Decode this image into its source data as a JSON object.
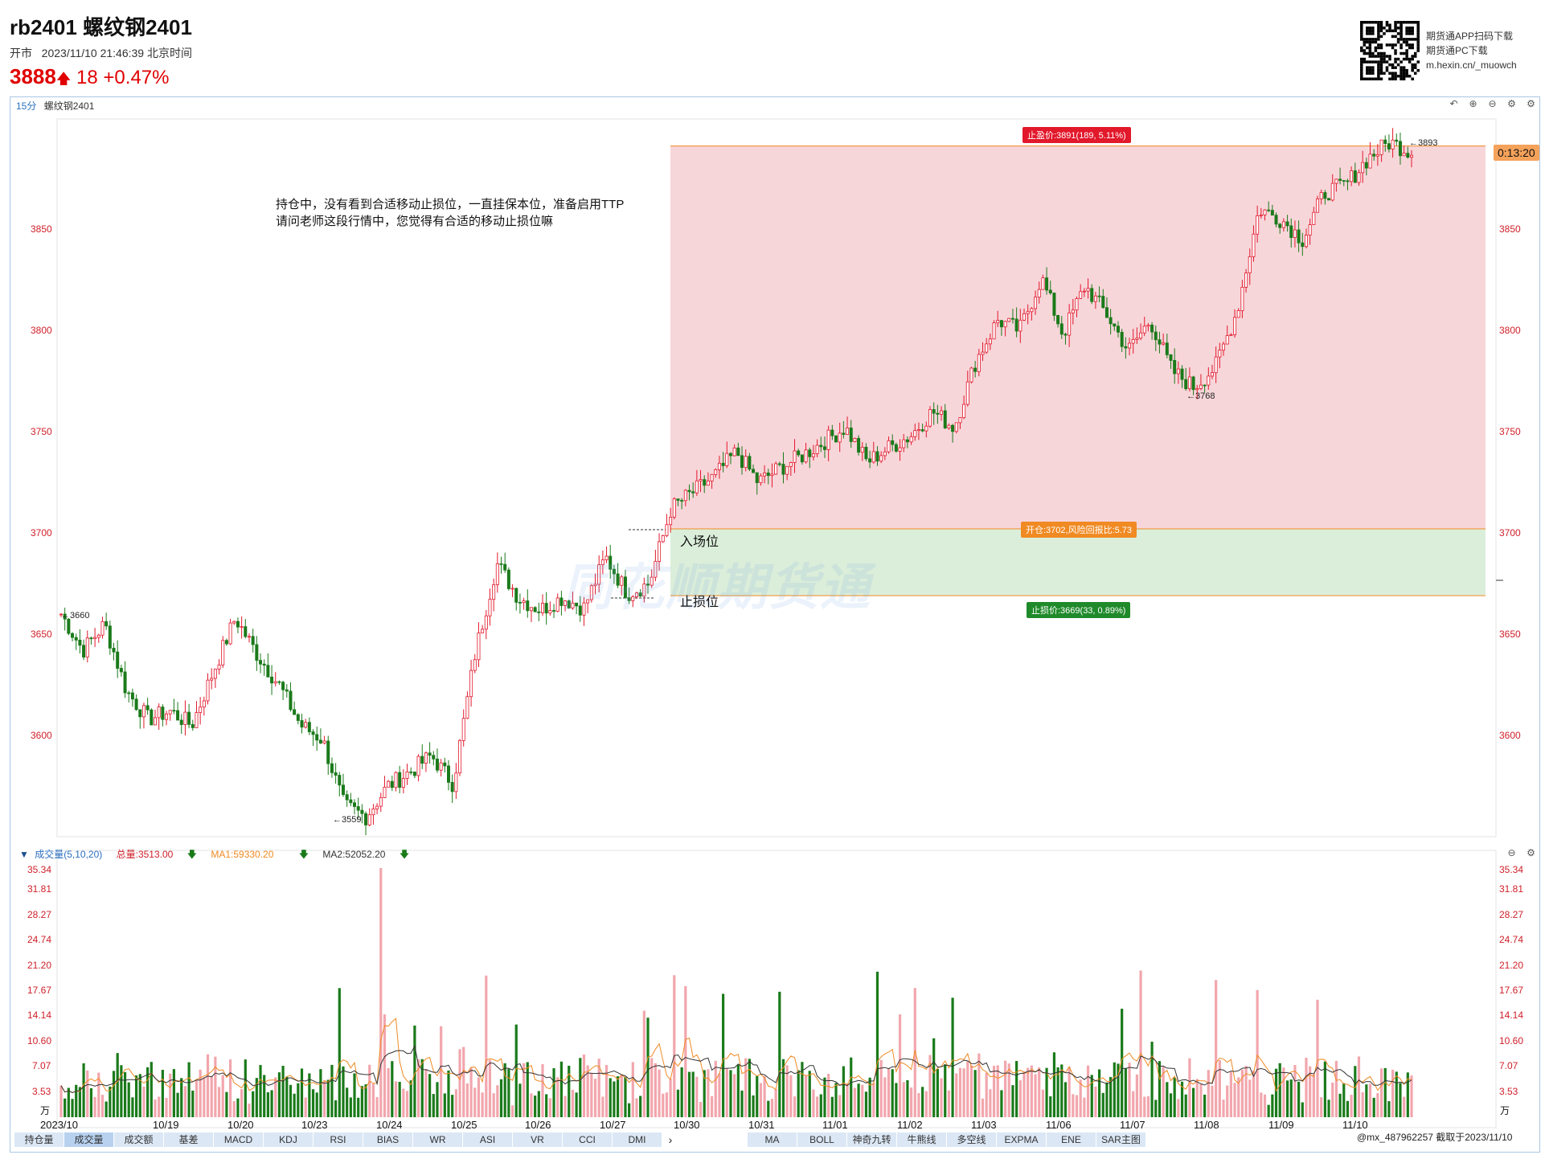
{
  "header": {
    "title": "rb2401 螺纹钢2401",
    "status": "开市",
    "datetime": "2023/11/10 21:46:39 北京时间",
    "price": "3888",
    "change": "18",
    "change_pct": "+0.47%",
    "qr_lines": [
      "期货通APP扫码下载",
      "期货通PC下载",
      "m.hexin.cn/_muowch"
    ]
  },
  "chart_header": {
    "period": "15分",
    "name": "螺纹钢2401"
  },
  "annotation": {
    "line1": "持仓中，没有看到合适移动止损位，一直挂保本位，准备启用TTP",
    "line2": "请问老师这段行情中，您觉得有合适的移动止损位嘛"
  },
  "entry_label": "入场位",
  "stop_label": "止损位",
  "tags": {
    "take_profit": "止盈价:3891(189, 5.11%)",
    "entry": "开仓:3702,风险回报比:5.73",
    "stop_loss": "止损价:3669(33, 0.89%)"
  },
  "timer": "0:13:20",
  "watermark": "同花顺期货通",
  "price_marks": {
    "start": "3660",
    "low": "3559",
    "mid": "3768",
    "high": "3893"
  },
  "price_axis": [
    "3850",
    "3800",
    "3750",
    "3700",
    "3650",
    "3600"
  ],
  "volume_legend": {
    "name": "成交量(5,10,20)",
    "total": "总量:3513.00",
    "ma1": "MA1:59330.20",
    "ma2": "MA2:52052.20"
  },
  "volume_axis": [
    "35.34",
    "31.81",
    "28.27",
    "24.74",
    "21.20",
    "17.67",
    "14.14",
    "10.60",
    "7.07",
    "3.53",
    "万"
  ],
  "dates": [
    "2023/10",
    "10/19",
    "10/20",
    "10/23",
    "10/24",
    "10/25",
    "10/26",
    "10/27",
    "10/30",
    "10/31",
    "11/01",
    "11/02",
    "11/03",
    "11/06",
    "11/07",
    "11/08",
    "11/09",
    "11/10"
  ],
  "tabs_left": [
    "持仓量",
    "成交量",
    "成交额",
    "基差",
    "MACD",
    "KDJ",
    "RSI",
    "BIAS",
    "WR",
    "ASI",
    "VR",
    "CCI",
    "DMI"
  ],
  "tabs_right": [
    "MA",
    "BOLL",
    "神奇九转",
    "牛熊线",
    "多空线",
    "EXPMA",
    "ENE",
    "SAR主图"
  ],
  "footer_note": "@mx_487962257  截取于2023/11/10",
  "colors": {
    "up": "#e2182b",
    "down": "#1a7a1a",
    "tp_zone": "#f7d6da",
    "sl_zone": "#dbeeda",
    "accent": "#f08a23"
  },
  "chart_data": {
    "type": "candlestick",
    "title": "",
    "interval": "15分",
    "ylim": [
      3545,
      3910
    ],
    "key_points": [
      {
        "label": "3660",
        "value": 3660
      },
      {
        "label": "3559",
        "value": 3559
      },
      {
        "label": "3768",
        "value": 3768
      },
      {
        "label": "3893",
        "value": 3893
      }
    ],
    "levels": {
      "take_profit": 3891,
      "entry": 3702,
      "stop_loss": 3669
    },
    "path": [
      3660,
      3642,
      3655,
      3622,
      3608,
      3612,
      3605,
      3632,
      3658,
      3640,
      3625,
      3605,
      3598,
      3565,
      3560,
      3575,
      3582,
      3590,
      3576,
      3640,
      3685,
      3668,
      3662,
      3668,
      3663,
      3688,
      3670,
      3675,
      3712,
      3720,
      3728,
      3740,
      3725,
      3732,
      3738,
      3745,
      3752,
      3735,
      3742,
      3748,
      3760,
      3752,
      3785,
      3805,
      3800,
      3826,
      3798,
      3822,
      3808,
      3790,
      3805,
      3780,
      3772,
      3782,
      3810,
      3860,
      3855,
      3845,
      3868,
      3872,
      3885,
      3893,
      3888
    ]
  }
}
